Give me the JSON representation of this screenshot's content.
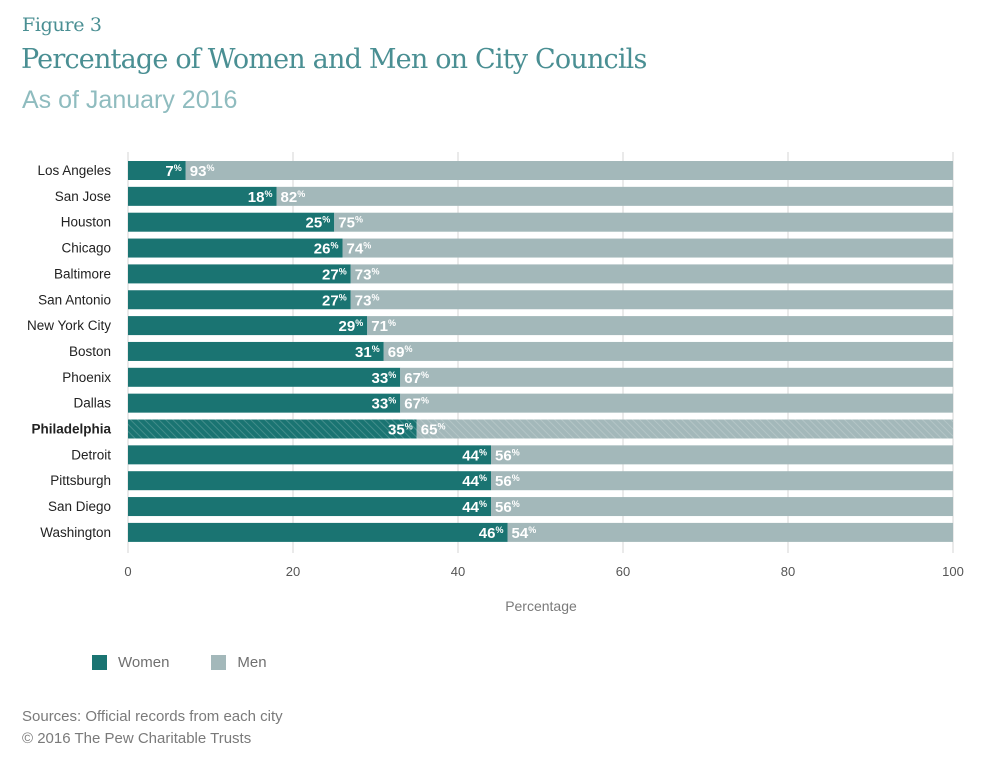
{
  "header": {
    "figure_label": "Figure 3",
    "title": "Percentage of Women and Men on City Councils",
    "subtitle": "As of January 2016"
  },
  "colors": {
    "women": "#1a7472",
    "men": "#a3b8ba",
    "title": "#4a8f93",
    "subtitle": "#8fbcbf",
    "grid": "#d6d6d6"
  },
  "legend": {
    "items": [
      {
        "label": "Women",
        "color": "#1a7472"
      },
      {
        "label": "Men",
        "color": "#a3b8ba"
      }
    ]
  },
  "footer": {
    "source": "Sources: Official records from each city",
    "copyright": "© 2016 The Pew Charitable Trusts"
  },
  "chart_data": {
    "type": "bar",
    "orientation": "horizontal",
    "stacked": true,
    "title": "Percentage of Women and Men on City Councils",
    "subtitle": "As of January 2016",
    "xlabel": "Percentage",
    "ylabel": "",
    "xlim": [
      0,
      100
    ],
    "xticks": [
      0,
      20,
      40,
      60,
      80,
      100
    ],
    "grid": true,
    "legend_position": "bottom-left",
    "value_suffix": "%",
    "highlighted_category": "Philadelphia",
    "categories": [
      "Los Angeles",
      "San Jose",
      "Houston",
      "Chicago",
      "Baltimore",
      "San Antonio",
      "New York City",
      "Boston",
      "Phoenix",
      "Dallas",
      "Philadelphia",
      "Detroit",
      "Pittsburgh",
      "San Diego",
      "Washington"
    ],
    "series": [
      {
        "name": "Women",
        "values": [
          7,
          18,
          25,
          26,
          27,
          27,
          29,
          31,
          33,
          33,
          35,
          44,
          44,
          44,
          46
        ]
      },
      {
        "name": "Men",
        "values": [
          93,
          82,
          75,
          74,
          73,
          73,
          71,
          69,
          67,
          67,
          65,
          56,
          56,
          56,
          54
        ]
      }
    ]
  }
}
